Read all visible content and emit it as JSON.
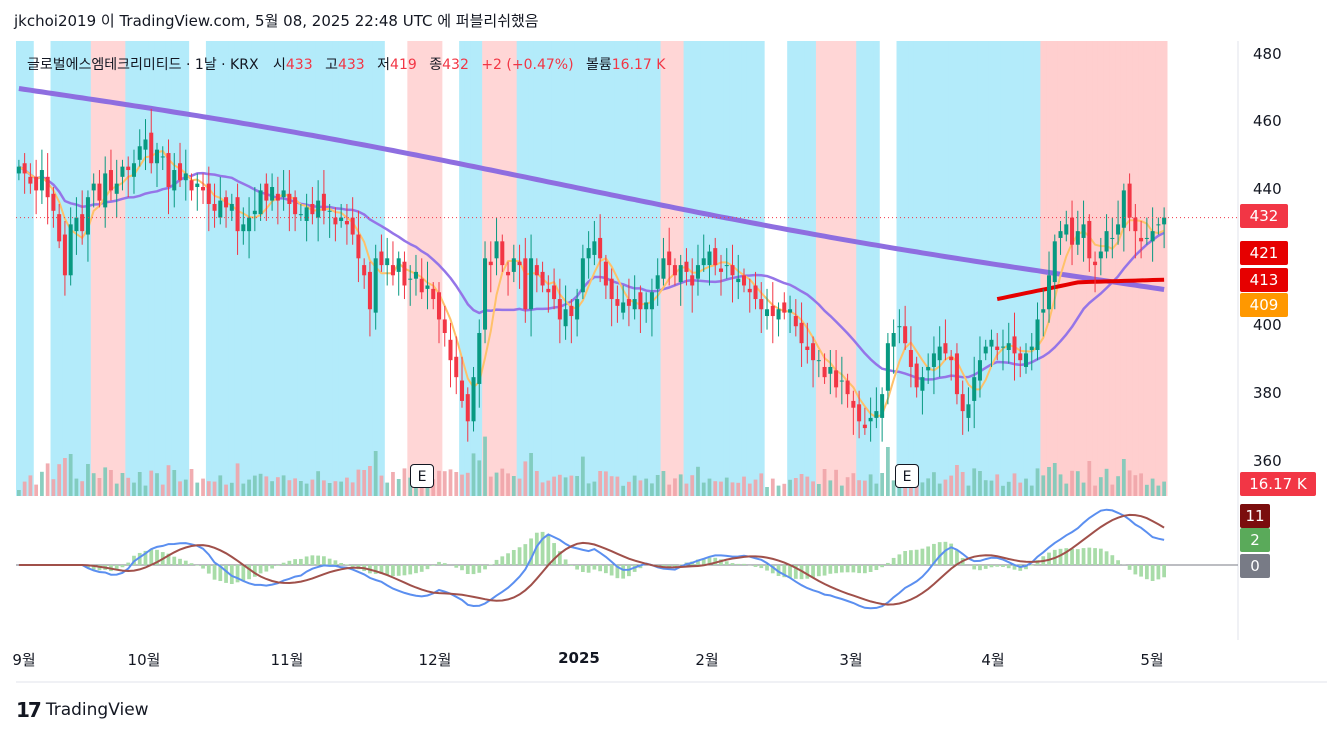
{
  "header": {
    "text": "jkchoi2019 이 TradingView.com, 5월 08, 2025 22:48 UTC 에 퍼블리쉬했음"
  },
  "legend": {
    "symbol": "글로벌에스엠테크리미티드 · 1날 · KRX",
    "open_label": "시",
    "open_value": "433",
    "high_label": "고",
    "high_value": "433",
    "low_label": "저",
    "low_value": "419",
    "close_label": "종",
    "close_value": "432",
    "change": "+2 (+0.47%)",
    "volume_label": "볼륨",
    "volume_value": "16.17 K"
  },
  "price_tags": [
    {
      "label": "432",
      "color": "#f23645",
      "price": 432
    },
    {
      "label": "421",
      "color": "#e60000",
      "price": 421
    },
    {
      "label": "413",
      "color": "#e60000",
      "price": 413
    },
    {
      "label": "409",
      "color": "#ff9800",
      "price": 409
    },
    {
      "label": "16.17 K",
      "color": "#f23645",
      "price": null
    }
  ],
  "osc_tags": [
    {
      "label": "11",
      "color": "#7b0d0d"
    },
    {
      "label": "2",
      "color": "#5aaa5a"
    },
    {
      "label": "0",
      "color": "#787b86"
    }
  ],
  "earnings_badges": [
    {
      "label": "E"
    },
    {
      "label": "E"
    }
  ],
  "footer": {
    "brand": "TradingView",
    "logo": "17"
  },
  "colors": {
    "up": "#089981",
    "down": "#f23645",
    "bg_blue": "#b3ebfa",
    "bg_pink": "#ffd6d6",
    "ma_long": "#8e6ee0",
    "ma_mid": "#9575e8",
    "ma_short": "#ffc16a",
    "ma_red": "#e60000",
    "macd": "#5b8ff0",
    "signal": "#a0504a",
    "hist_up": "#a8dca8",
    "hist_down": "#a8dca8"
  },
  "chart_data": {
    "type": "candlestick",
    "y_axis": {
      "ticks": [
        360,
        380,
        400,
        420,
        440,
        460,
        480
      ],
      "tick_labels": [
        "360",
        "380",
        "400",
        "",
        "440",
        "460",
        "480"
      ],
      "range": [
        350,
        484
      ]
    },
    "x_axis": {
      "labels": [
        "9월",
        "10월",
        "11월",
        "12월",
        "2025",
        "2월",
        "3월",
        "4월",
        "5월"
      ],
      "bold": [
        false,
        false,
        false,
        false,
        true,
        false,
        false,
        false,
        false
      ]
    },
    "last_price": 432,
    "closes": [
      447,
      445,
      442,
      440,
      446,
      438,
      434,
      425,
      415,
      430,
      432,
      428,
      438,
      442,
      437,
      445,
      440,
      442,
      447,
      446,
      448,
      453,
      455,
      448,
      452,
      450,
      441,
      446,
      443,
      445,
      440,
      442,
      440,
      436,
      434,
      437,
      435,
      436,
      428,
      430,
      432,
      434,
      440,
      437,
      441,
      437,
      440,
      436,
      433,
      433,
      435,
      433,
      437,
      434,
      434,
      430,
      432,
      430,
      427,
      420,
      415,
      405,
      420,
      418,
      420,
      415,
      420,
      412,
      414,
      416,
      410,
      412,
      408,
      402,
      398,
      390,
      385,
      378,
      372,
      385,
      398,
      420,
      418,
      425,
      418,
      415,
      420,
      418,
      405,
      420,
      415,
      412,
      410,
      408,
      402,
      405,
      403,
      408,
      420,
      423,
      425,
      420,
      412,
      408,
      406,
      407,
      406,
      408,
      405,
      407,
      410,
      415,
      420,
      418,
      415,
      418,
      416,
      412,
      418,
      420,
      422,
      418,
      416,
      418,
      415,
      414,
      412,
      410,
      408,
      405,
      405,
      403,
      405,
      404,
      405,
      400,
      395,
      393,
      390,
      390,
      385,
      388,
      382,
      384,
      380,
      376,
      372,
      370,
      373,
      375,
      380,
      395,
      398,
      400,
      395,
      388,
      382,
      385,
      388,
      392,
      394,
      392,
      390,
      380,
      375,
      377,
      385,
      390,
      394,
      396,
      393,
      394,
      395,
      392,
      390,
      392,
      394,
      402,
      405,
      415,
      425,
      428,
      430,
      424,
      428,
      430,
      420,
      418,
      422,
      428,
      426,
      430,
      440,
      432,
      428,
      425,
      426,
      428,
      430,
      432
    ]
  }
}
